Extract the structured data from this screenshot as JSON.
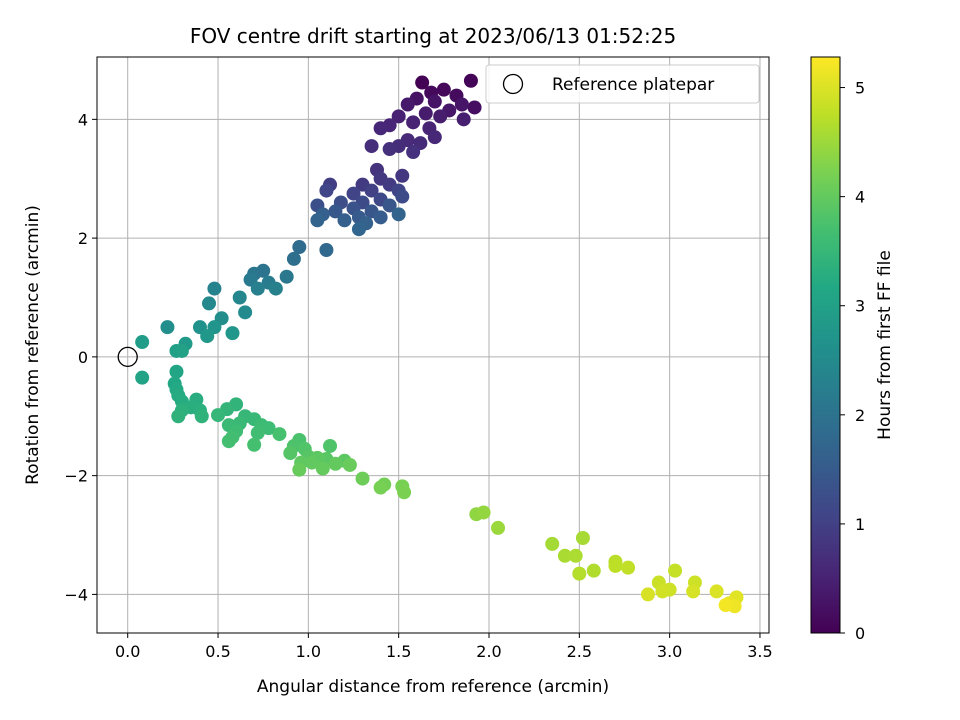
{
  "chart_data": {
    "type": "scatter",
    "title": "FOV centre drift starting at 2023/06/13 01:52:25",
    "xlabel": "Angular distance from reference (arcmin)",
    "ylabel": "Rotation from reference (arcmin)",
    "xlim": [
      -0.17,
      3.55
    ],
    "ylim": [
      -4.65,
      5.05
    ],
    "xticks": [
      0.0,
      0.5,
      1.0,
      1.5,
      2.0,
      2.5,
      3.0,
      3.5
    ],
    "xtick_labels": [
      "0.0",
      "0.5",
      "1.0",
      "1.5",
      "2.0",
      "2.5",
      "3.0",
      "3.5"
    ],
    "yticks": [
      -4,
      -2,
      0,
      2,
      4
    ],
    "ytick_labels": [
      "−4",
      "−2",
      "0",
      "2",
      "4"
    ],
    "grid": true,
    "legend": {
      "position": "top-right",
      "entries": [
        "Reference platepar"
      ]
    },
    "reference_point": {
      "x": 0.0,
      "y": 0.0
    },
    "colorbar": {
      "label": "Hours from first FF file",
      "colormap": "viridis",
      "range": [
        0,
        5.28
      ],
      "ticks": [
        0,
        1,
        2,
        3,
        4,
        5
      ],
      "tick_labels": [
        "0",
        "1",
        "2",
        "3",
        "4",
        "5"
      ]
    },
    "points": [
      {
        "x": 1.63,
        "y": 4.62,
        "c": 0.02
      },
      {
        "x": 1.9,
        "y": 4.65,
        "c": 0.05
      },
      {
        "x": 1.75,
        "y": 4.5,
        "c": 0.1
      },
      {
        "x": 1.68,
        "y": 4.45,
        "c": 0.12
      },
      {
        "x": 1.82,
        "y": 4.4,
        "c": 0.15
      },
      {
        "x": 1.92,
        "y": 4.2,
        "c": 0.2
      },
      {
        "x": 1.6,
        "y": 4.35,
        "c": 0.25
      },
      {
        "x": 1.7,
        "y": 4.3,
        "c": 0.28
      },
      {
        "x": 1.85,
        "y": 4.25,
        "c": 0.3
      },
      {
        "x": 1.78,
        "y": 4.15,
        "c": 0.33
      },
      {
        "x": 1.55,
        "y": 4.25,
        "c": 0.36
      },
      {
        "x": 1.65,
        "y": 4.1,
        "c": 0.4
      },
      {
        "x": 1.73,
        "y": 4.05,
        "c": 0.42
      },
      {
        "x": 1.86,
        "y": 4.0,
        "c": 0.45
      },
      {
        "x": 1.5,
        "y": 4.05,
        "c": 0.48
      },
      {
        "x": 1.58,
        "y": 3.95,
        "c": 0.5
      },
      {
        "x": 1.67,
        "y": 3.85,
        "c": 0.53
      },
      {
        "x": 1.45,
        "y": 3.9,
        "c": 0.55
      },
      {
        "x": 1.4,
        "y": 3.85,
        "c": 0.58
      },
      {
        "x": 1.7,
        "y": 3.7,
        "c": 0.6
      },
      {
        "x": 1.55,
        "y": 3.65,
        "c": 0.63
      },
      {
        "x": 1.62,
        "y": 3.6,
        "c": 0.65
      },
      {
        "x": 1.5,
        "y": 3.55,
        "c": 0.68
      },
      {
        "x": 1.35,
        "y": 3.55,
        "c": 0.7
      },
      {
        "x": 1.45,
        "y": 3.5,
        "c": 0.72
      },
      {
        "x": 1.58,
        "y": 3.45,
        "c": 0.75
      },
      {
        "x": 1.38,
        "y": 3.15,
        "c": 0.78
      },
      {
        "x": 1.52,
        "y": 3.05,
        "c": 0.82
      },
      {
        "x": 1.4,
        "y": 3.0,
        "c": 0.85
      },
      {
        "x": 1.3,
        "y": 2.9,
        "c": 0.9
      },
      {
        "x": 1.45,
        "y": 2.9,
        "c": 0.92
      },
      {
        "x": 1.12,
        "y": 2.9,
        "c": 0.95
      },
      {
        "x": 1.35,
        "y": 2.8,
        "c": 1.0
      },
      {
        "x": 1.25,
        "y": 2.75,
        "c": 1.05
      },
      {
        "x": 1.5,
        "y": 2.8,
        "c": 1.08
      },
      {
        "x": 1.1,
        "y": 2.8,
        "c": 1.1
      },
      {
        "x": 1.4,
        "y": 2.65,
        "c": 1.15
      },
      {
        "x": 1.3,
        "y": 2.6,
        "c": 1.2
      },
      {
        "x": 1.52,
        "y": 2.7,
        "c": 1.22
      },
      {
        "x": 1.18,
        "y": 2.6,
        "c": 1.25
      },
      {
        "x": 1.05,
        "y": 2.55,
        "c": 1.3
      },
      {
        "x": 1.25,
        "y": 2.5,
        "c": 1.35
      },
      {
        "x": 1.35,
        "y": 2.45,
        "c": 1.4
      },
      {
        "x": 1.45,
        "y": 2.55,
        "c": 1.42
      },
      {
        "x": 1.15,
        "y": 2.45,
        "c": 1.45
      },
      {
        "x": 1.28,
        "y": 2.35,
        "c": 1.5
      },
      {
        "x": 1.4,
        "y": 2.35,
        "c": 1.55
      },
      {
        "x": 1.08,
        "y": 2.4,
        "c": 1.58
      },
      {
        "x": 1.2,
        "y": 2.3,
        "c": 1.6
      },
      {
        "x": 1.32,
        "y": 2.25,
        "c": 1.65
      },
      {
        "x": 1.5,
        "y": 2.4,
        "c": 1.68
      },
      {
        "x": 1.05,
        "y": 2.3,
        "c": 1.7
      },
      {
        "x": 1.28,
        "y": 2.15,
        "c": 1.72
      },
      {
        "x": 1.1,
        "y": 1.8,
        "c": 1.78
      },
      {
        "x": 0.95,
        "y": 1.85,
        "c": 1.85
      },
      {
        "x": 0.92,
        "y": 1.65,
        "c": 1.92
      },
      {
        "x": 0.75,
        "y": 1.45,
        "c": 2.0
      },
      {
        "x": 0.7,
        "y": 1.4,
        "c": 2.05
      },
      {
        "x": 0.88,
        "y": 1.35,
        "c": 2.1
      },
      {
        "x": 0.68,
        "y": 1.3,
        "c": 2.15
      },
      {
        "x": 0.78,
        "y": 1.25,
        "c": 2.2
      },
      {
        "x": 0.72,
        "y": 1.15,
        "c": 2.25
      },
      {
        "x": 0.82,
        "y": 1.15,
        "c": 2.3
      },
      {
        "x": 0.48,
        "y": 1.15,
        "c": 2.35
      },
      {
        "x": 0.62,
        "y": 1.0,
        "c": 2.4
      },
      {
        "x": 0.45,
        "y": 0.9,
        "c": 2.45
      },
      {
        "x": 0.65,
        "y": 0.75,
        "c": 2.5
      },
      {
        "x": 0.52,
        "y": 0.65,
        "c": 2.55
      },
      {
        "x": 0.22,
        "y": 0.5,
        "c": 2.6
      },
      {
        "x": 0.4,
        "y": 0.5,
        "c": 2.65
      },
      {
        "x": 0.48,
        "y": 0.5,
        "c": 2.7
      },
      {
        "x": 0.58,
        "y": 0.4,
        "c": 2.75
      },
      {
        "x": 0.44,
        "y": 0.35,
        "c": 2.8
      },
      {
        "x": 0.32,
        "y": 0.22,
        "c": 2.85
      },
      {
        "x": 0.08,
        "y": 0.25,
        "c": 2.9
      },
      {
        "x": 0.27,
        "y": 0.1,
        "c": 2.95
      },
      {
        "x": 0.3,
        "y": 0.1,
        "c": 3.0
      },
      {
        "x": 0.08,
        "y": -0.35,
        "c": 3.05
      },
      {
        "x": 0.27,
        "y": -0.25,
        "c": 3.1
      },
      {
        "x": 0.26,
        "y": -0.45,
        "c": 3.15
      },
      {
        "x": 0.27,
        "y": -0.55,
        "c": 3.18
      },
      {
        "x": 0.28,
        "y": -0.65,
        "c": 3.22
      },
      {
        "x": 0.3,
        "y": -0.75,
        "c": 3.25
      },
      {
        "x": 0.38,
        "y": -0.72,
        "c": 3.28
      },
      {
        "x": 0.35,
        "y": -0.85,
        "c": 3.3
      },
      {
        "x": 0.4,
        "y": -0.9,
        "c": 3.33
      },
      {
        "x": 0.3,
        "y": -0.9,
        "c": 3.35
      },
      {
        "x": 0.28,
        "y": -1.0,
        "c": 3.38
      },
      {
        "x": 0.41,
        "y": -1.0,
        "c": 3.4
      },
      {
        "x": 0.6,
        "y": -0.8,
        "c": 3.42
      },
      {
        "x": 0.55,
        "y": -0.88,
        "c": 3.45
      },
      {
        "x": 0.5,
        "y": -0.98,
        "c": 3.48
      },
      {
        "x": 0.65,
        "y": -1.0,
        "c": 3.5
      },
      {
        "x": 0.7,
        "y": -1.05,
        "c": 3.52
      },
      {
        "x": 0.62,
        "y": -1.12,
        "c": 3.54
      },
      {
        "x": 0.56,
        "y": -1.15,
        "c": 3.56
      },
      {
        "x": 0.74,
        "y": -1.15,
        "c": 3.58
      },
      {
        "x": 0.78,
        "y": -1.2,
        "c": 3.6
      },
      {
        "x": 0.6,
        "y": -1.25,
        "c": 3.62
      },
      {
        "x": 0.72,
        "y": -1.28,
        "c": 3.64
      },
      {
        "x": 0.58,
        "y": -1.35,
        "c": 3.66
      },
      {
        "x": 0.56,
        "y": -1.42,
        "c": 3.68
      },
      {
        "x": 0.7,
        "y": -1.48,
        "c": 3.7
      },
      {
        "x": 0.84,
        "y": -1.3,
        "c": 3.72
      },
      {
        "x": 0.95,
        "y": -1.4,
        "c": 3.75
      },
      {
        "x": 0.92,
        "y": -1.5,
        "c": 3.78
      },
      {
        "x": 1.12,
        "y": -1.5,
        "c": 3.8
      },
      {
        "x": 0.98,
        "y": -1.55,
        "c": 3.82
      },
      {
        "x": 0.9,
        "y": -1.62,
        "c": 3.85
      },
      {
        "x": 1.0,
        "y": -1.68,
        "c": 3.88
      },
      {
        "x": 1.1,
        "y": -1.72,
        "c": 3.9
      },
      {
        "x": 1.2,
        "y": -1.75,
        "c": 3.92
      },
      {
        "x": 1.05,
        "y": -1.7,
        "c": 3.94
      },
      {
        "x": 0.96,
        "y": -1.78,
        "c": 3.96
      },
      {
        "x": 1.02,
        "y": -1.78,
        "c": 3.98
      },
      {
        "x": 1.15,
        "y": -1.8,
        "c": 4.0
      },
      {
        "x": 1.08,
        "y": -1.88,
        "c": 4.02
      },
      {
        "x": 0.95,
        "y": -1.9,
        "c": 4.04
      },
      {
        "x": 1.23,
        "y": -1.82,
        "c": 4.06
      },
      {
        "x": 1.3,
        "y": -2.05,
        "c": 4.1
      },
      {
        "x": 1.42,
        "y": -2.15,
        "c": 4.15
      },
      {
        "x": 1.4,
        "y": -2.2,
        "c": 4.18
      },
      {
        "x": 1.52,
        "y": -2.18,
        "c": 4.2
      },
      {
        "x": 1.53,
        "y": -2.28,
        "c": 4.22
      },
      {
        "x": 1.93,
        "y": -2.65,
        "c": 4.4
      },
      {
        "x": 1.97,
        "y": -2.62,
        "c": 4.43
      },
      {
        "x": 2.05,
        "y": -2.88,
        "c": 4.48
      },
      {
        "x": 2.35,
        "y": -3.15,
        "c": 4.55
      },
      {
        "x": 2.52,
        "y": -3.05,
        "c": 4.58
      },
      {
        "x": 2.42,
        "y": -3.35,
        "c": 4.6
      },
      {
        "x": 2.48,
        "y": -3.35,
        "c": 4.62
      },
      {
        "x": 2.58,
        "y": -3.6,
        "c": 4.65
      },
      {
        "x": 2.5,
        "y": -3.65,
        "c": 4.68
      },
      {
        "x": 2.7,
        "y": -3.45,
        "c": 4.72
      },
      {
        "x": 2.7,
        "y": -3.52,
        "c": 4.75
      },
      {
        "x": 2.77,
        "y": -3.55,
        "c": 4.78
      },
      {
        "x": 3.03,
        "y": -3.6,
        "c": 4.82
      },
      {
        "x": 2.94,
        "y": -3.8,
        "c": 4.85
      },
      {
        "x": 3.14,
        "y": -3.8,
        "c": 4.88
      },
      {
        "x": 3.0,
        "y": -3.92,
        "c": 4.9
      },
      {
        "x": 2.96,
        "y": -3.95,
        "c": 4.92
      },
      {
        "x": 3.13,
        "y": -3.95,
        "c": 4.95
      },
      {
        "x": 2.88,
        "y": -4.0,
        "c": 4.97
      },
      {
        "x": 3.26,
        "y": -3.95,
        "c": 5.0
      },
      {
        "x": 3.37,
        "y": -4.05,
        "c": 5.05
      },
      {
        "x": 3.33,
        "y": -4.15,
        "c": 5.1
      },
      {
        "x": 3.36,
        "y": -4.2,
        "c": 5.15
      },
      {
        "x": 3.31,
        "y": -4.18,
        "c": 5.2
      }
    ]
  }
}
